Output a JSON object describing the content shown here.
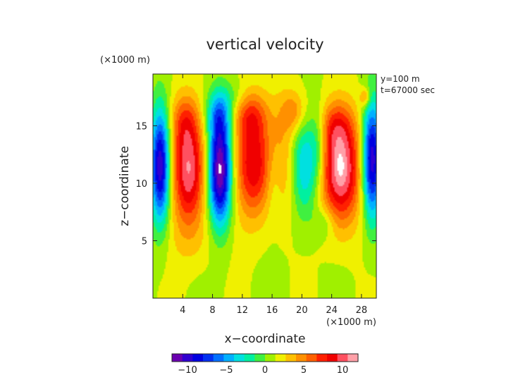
{
  "chart_data": {
    "type": "heatmap",
    "title": "vertical velocity",
    "xlabel": "x−coordinate",
    "ylabel": "z−coordinate",
    "x_unit": "(×1000 m)",
    "y_unit": "(×1000 m)",
    "xlim": [
      0,
      30
    ],
    "ylim": [
      0,
      19.5
    ],
    "x_ticks": [
      4,
      8,
      12,
      16,
      20,
      24,
      28
    ],
    "y_ticks": [
      5,
      10,
      15
    ],
    "x_tick_labels": [
      "4",
      "8",
      "12",
      "16",
      "20",
      "24",
      "28"
    ],
    "y_tick_labels": [
      "5",
      "10",
      "15"
    ],
    "annotations": [
      "y=100 m",
      "t=67000 sec"
    ],
    "colorbar": {
      "range": [
        -12,
        12
      ],
      "ticks": [
        -10,
        -5,
        0,
        5,
        10
      ],
      "tick_labels": [
        "−10",
        "−5",
        "0",
        "5",
        "10"
      ],
      "colors": [
        "#6a00b0",
        "#3000d0",
        "#0000e0",
        "#0030f0",
        "#0070ff",
        "#00b0ff",
        "#00e0e0",
        "#00f0a0",
        "#40f040",
        "#a0f000",
        "#f0f000",
        "#ffc000",
        "#ff9000",
        "#ff6000",
        "#ff2000",
        "#f00000",
        "#ff5060",
        "#ffa0a8"
      ]
    },
    "features": [
      {
        "kind": "updraft",
        "x": 4.5,
        "z": 11.0,
        "peak": 9
      },
      {
        "kind": "downdraft",
        "x": 9.0,
        "z": 11.0,
        "peak": -13
      },
      {
        "kind": "updraft",
        "x": 13.5,
        "z": 11.5,
        "peak": 8
      },
      {
        "kind": "updraft",
        "x": 18.0,
        "z": 15.5,
        "peak": 5
      },
      {
        "kind": "downdraft",
        "x": 20.5,
        "z": 11.0,
        "peak": -5
      },
      {
        "kind": "updraft",
        "x": 25.0,
        "z": 11.0,
        "peak": 10
      },
      {
        "kind": "downdraft",
        "x": 29.0,
        "z": 12.0,
        "peak": -11
      },
      {
        "kind": "downdraft",
        "x": 0.7,
        "z": 11.5,
        "peak": -11
      }
    ]
  }
}
